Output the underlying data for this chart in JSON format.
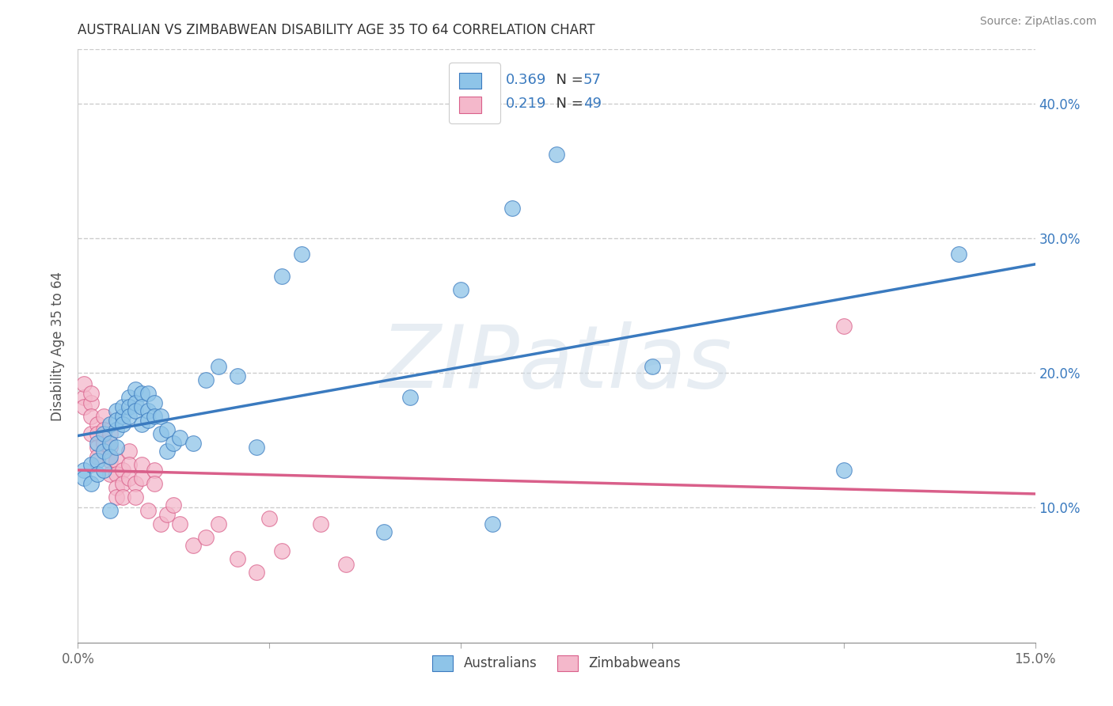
{
  "title": "AUSTRALIAN VS ZIMBABWEAN DISABILITY AGE 35 TO 64 CORRELATION CHART",
  "source": "Source: ZipAtlas.com",
  "ylabel": "Disability Age 35 to 64",
  "xlim": [
    0.0,
    0.15
  ],
  "ylim": [
    0.0,
    0.44
  ],
  "xticks": [
    0.0,
    0.03,
    0.06,
    0.09,
    0.12,
    0.15
  ],
  "yticks_right": [
    0.1,
    0.2,
    0.3,
    0.4
  ],
  "ytick_labels_right": [
    "10.0%",
    "20.0%",
    "30.0%",
    "40.0%"
  ],
  "watermark": "ZIPatlas",
  "legend_label_blue": "Australians",
  "legend_label_pink": "Zimbabweans",
  "color_blue": "#8ec4e8",
  "color_pink": "#f4b8cb",
  "line_color_blue": "#3a7abf",
  "line_color_pink": "#d95f8a",
  "blue_x": [
    0.001,
    0.001,
    0.002,
    0.002,
    0.003,
    0.003,
    0.003,
    0.004,
    0.004,
    0.004,
    0.005,
    0.005,
    0.005,
    0.006,
    0.006,
    0.006,
    0.006,
    0.007,
    0.007,
    0.007,
    0.008,
    0.008,
    0.008,
    0.009,
    0.009,
    0.009,
    0.01,
    0.01,
    0.01,
    0.011,
    0.011,
    0.011,
    0.012,
    0.012,
    0.013,
    0.013,
    0.014,
    0.014,
    0.015,
    0.016,
    0.018,
    0.02,
    0.022,
    0.025,
    0.028,
    0.032,
    0.035,
    0.048,
    0.052,
    0.06,
    0.065,
    0.068,
    0.075,
    0.09,
    0.12,
    0.138,
    0.005
  ],
  "blue_y": [
    0.128,
    0.122,
    0.132,
    0.118,
    0.148,
    0.135,
    0.125,
    0.155,
    0.142,
    0.128,
    0.162,
    0.148,
    0.138,
    0.172,
    0.158,
    0.165,
    0.145,
    0.168,
    0.175,
    0.162,
    0.182,
    0.175,
    0.168,
    0.188,
    0.178,
    0.172,
    0.185,
    0.175,
    0.162,
    0.185,
    0.172,
    0.165,
    0.178,
    0.168,
    0.168,
    0.155,
    0.158,
    0.142,
    0.148,
    0.152,
    0.148,
    0.195,
    0.205,
    0.198,
    0.145,
    0.272,
    0.288,
    0.082,
    0.182,
    0.262,
    0.088,
    0.322,
    0.362,
    0.205,
    0.128,
    0.288,
    0.098
  ],
  "pink_x": [
    0.001,
    0.001,
    0.001,
    0.002,
    0.002,
    0.002,
    0.002,
    0.003,
    0.003,
    0.003,
    0.003,
    0.004,
    0.004,
    0.004,
    0.005,
    0.005,
    0.005,
    0.005,
    0.006,
    0.006,
    0.006,
    0.006,
    0.007,
    0.007,
    0.007,
    0.008,
    0.008,
    0.008,
    0.009,
    0.009,
    0.01,
    0.01,
    0.011,
    0.012,
    0.012,
    0.013,
    0.014,
    0.015,
    0.016,
    0.018,
    0.02,
    0.022,
    0.025,
    0.028,
    0.03,
    0.032,
    0.038,
    0.042,
    0.12
  ],
  "pink_y": [
    0.182,
    0.175,
    0.192,
    0.178,
    0.185,
    0.168,
    0.155,
    0.162,
    0.155,
    0.145,
    0.138,
    0.168,
    0.158,
    0.148,
    0.155,
    0.145,
    0.135,
    0.125,
    0.135,
    0.125,
    0.115,
    0.108,
    0.128,
    0.118,
    0.108,
    0.142,
    0.132,
    0.122,
    0.118,
    0.108,
    0.132,
    0.122,
    0.098,
    0.128,
    0.118,
    0.088,
    0.095,
    0.102,
    0.088,
    0.072,
    0.078,
    0.088,
    0.062,
    0.052,
    0.092,
    0.068,
    0.088,
    0.058,
    0.235
  ]
}
